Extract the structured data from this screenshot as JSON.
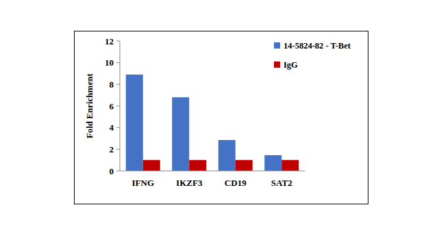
{
  "chart_data": {
    "type": "bar",
    "y_label": "Fold Enrichment",
    "categories": [
      "IFNG",
      "IKZF3",
      "CD19",
      "SAT2"
    ],
    "series": [
      {
        "name": "14-5824-82 - T-Bet",
        "color": "#4472c4",
        "values": [
          8.9,
          6.8,
          2.85,
          1.45
        ]
      },
      {
        "name": "IgG",
        "color": "#c00000",
        "values": [
          1,
          1,
          1,
          1
        ]
      }
    ],
    "ylim": [
      0,
      12
    ],
    "yticks": [
      0,
      2,
      4,
      6,
      8,
      10,
      12
    ],
    "grid": false,
    "legend": "right"
  }
}
